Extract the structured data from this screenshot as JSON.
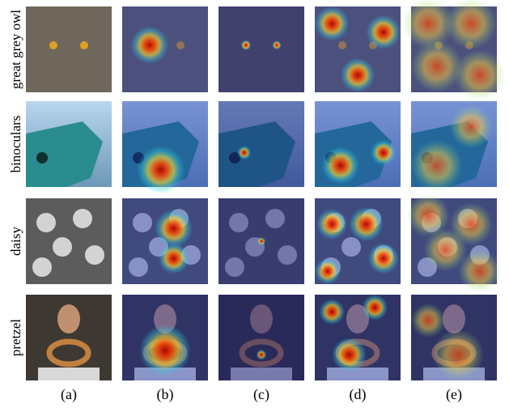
{
  "rows": [
    {
      "label": "great grey owl"
    },
    {
      "label": "binoculars"
    },
    {
      "label": "daisy"
    },
    {
      "label": "pretzel"
    }
  ],
  "columns": [
    "(a)",
    "(b)",
    "(c)",
    "(d)",
    "(e)"
  ]
}
